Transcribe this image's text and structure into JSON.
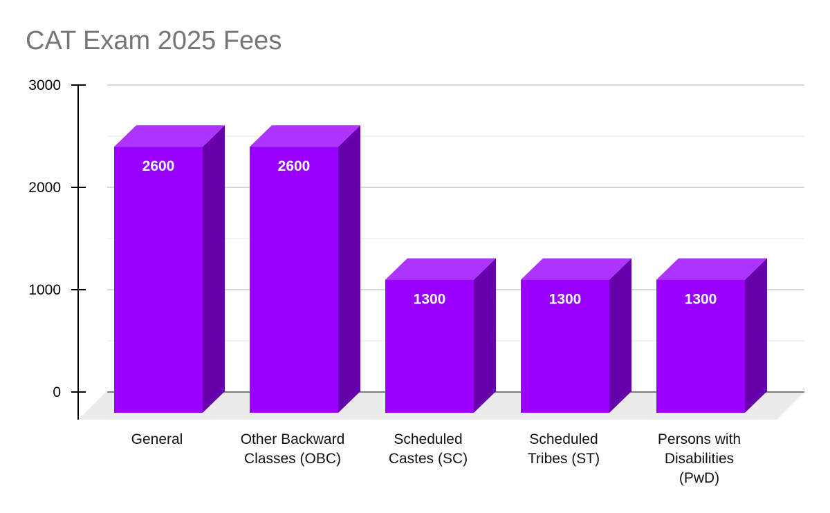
{
  "chart_data": {
    "type": "bar",
    "title": "CAT Exam 2025 Fees",
    "categories": [
      [
        "General"
      ],
      [
        "Other Backward",
        "Classes (OBC)"
      ],
      [
        "Scheduled",
        "Castes (SC)"
      ],
      [
        "Scheduled",
        "Tribes (ST)"
      ],
      [
        "Persons with",
        "Disabilities",
        "(PwD)"
      ]
    ],
    "values": [
      2600,
      2600,
      1300,
      1300,
      1300
    ],
    "data_labels": [
      "2600",
      "2600",
      "1300",
      "1300",
      "1300"
    ],
    "yticks": [
      0,
      1000,
      2000,
      3000
    ],
    "ylim": [
      0,
      3000
    ],
    "xlabel": "",
    "ylabel": "",
    "grid": true,
    "legend": "none",
    "style": "3d"
  },
  "colors": {
    "bar_front": "#9900ff",
    "bar_top": "#ad33ff",
    "bar_side": "#6600aa",
    "floor": "#ebebeb",
    "major_grid": "#cccccc",
    "minor_grid": "#e3e3e3",
    "title": "#757575"
  }
}
